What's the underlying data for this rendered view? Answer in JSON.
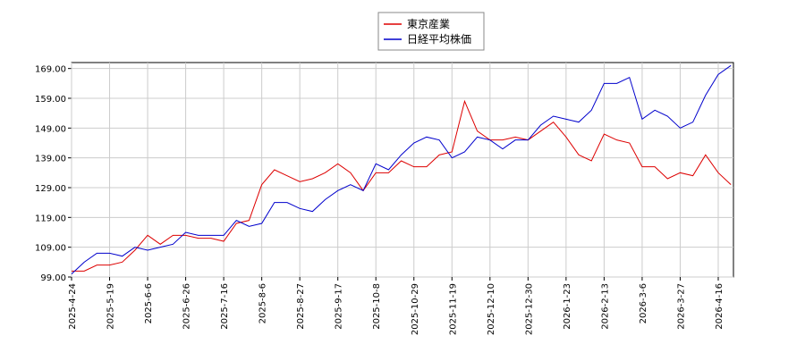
{
  "chart_data": {
    "type": "line",
    "x": [
      0,
      5,
      10,
      15,
      20,
      25,
      30,
      35,
      40,
      45,
      50,
      55,
      60,
      65,
      70,
      75,
      80,
      85,
      90,
      95,
      100,
      105,
      110,
      115,
      120,
      125,
      130,
      135,
      140,
      145,
      150,
      155,
      160,
      165,
      170,
      175,
      180,
      185,
      190,
      195,
      200,
      205,
      210,
      215,
      220,
      225,
      230,
      235,
      240,
      245,
      250,
      255,
      260
    ],
    "series": [
      {
        "name": "東京産業",
        "color": "#dd0000",
        "values": [
          101,
          101,
          103,
          103,
          104,
          108,
          113,
          110,
          113,
          113,
          112,
          112,
          111,
          117,
          118,
          130,
          135,
          133,
          131,
          132,
          134,
          137,
          134,
          128,
          134,
          134,
          138,
          136,
          136,
          140,
          141,
          158,
          148,
          145,
          145,
          146,
          145,
          148,
          151,
          146,
          140,
          138,
          147,
          145,
          144,
          136,
          136,
          132,
          134,
          133,
          140,
          134,
          130
        ]
      },
      {
        "name": "日経平均株価",
        "color": "#0000cc",
        "values": [
          100,
          104,
          107,
          107,
          106,
          109,
          108,
          109,
          110,
          114,
          113,
          113,
          113,
          118,
          116,
          117,
          124,
          124,
          122,
          121,
          125,
          128,
          130,
          128,
          137,
          135,
          140,
          144,
          146,
          145,
          139,
          141,
          146,
          145,
          142,
          145,
          145,
          150,
          153,
          152,
          151,
          155,
          164,
          164,
          166,
          152,
          155,
          153,
          149,
          151,
          160,
          167,
          170
        ]
      }
    ],
    "xlim": [
      0,
      261
    ],
    "xticks": [
      {
        "value": 0,
        "label": "2025-4-24"
      },
      {
        "value": 15,
        "label": "2025-5-19"
      },
      {
        "value": 30,
        "label": "2025-6-6"
      },
      {
        "value": 45,
        "label": "2025-6-26"
      },
      {
        "value": 60,
        "label": "2025-7-16"
      },
      {
        "value": 75,
        "label": "2025-8-6"
      },
      {
        "value": 90,
        "label": "2025-8-27"
      },
      {
        "value": 105,
        "label": "2025-9-17"
      },
      {
        "value": 120,
        "label": "2025-10-8"
      },
      {
        "value": 135,
        "label": "2025-10-29"
      },
      {
        "value": 150,
        "label": "2025-11-19"
      },
      {
        "value": 165,
        "label": "2025-12-10"
      },
      {
        "value": 180,
        "label": "2025-12-30"
      },
      {
        "value": 195,
        "label": "2026-1-23"
      },
      {
        "value": 210,
        "label": "2026-2-13"
      },
      {
        "value": 225,
        "label": "2026-3-6"
      },
      {
        "value": 240,
        "label": "2026-3-27"
      },
      {
        "value": 255,
        "label": "2026-4-16"
      }
    ],
    "ylim": [
      99,
      171
    ],
    "yticks": [
      {
        "value": 99,
        "label": "99.00"
      },
      {
        "value": 109,
        "label": "109.00"
      },
      {
        "value": 119,
        "label": "119.00"
      },
      {
        "value": 129,
        "label": "129.00"
      },
      {
        "value": 139,
        "label": "139.00"
      },
      {
        "value": 149,
        "label": "149.00"
      },
      {
        "value": 159,
        "label": "159.00"
      },
      {
        "value": 169,
        "label": "169.00"
      }
    ],
    "grid": true,
    "legend": "top"
  }
}
